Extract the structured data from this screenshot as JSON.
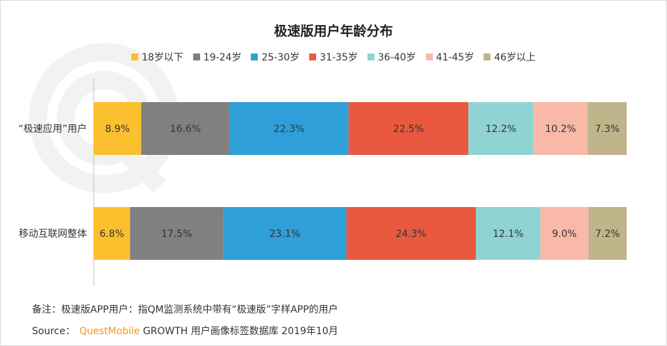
{
  "chart_data": {
    "type": "bar",
    "orientation": "horizontal",
    "stacked": true,
    "title": "极速版用户年龄分布",
    "categories": [
      "“极速应用”用户",
      "移动互联网整体"
    ],
    "series": [
      {
        "name": "18岁以下",
        "color": "#fbc02d",
        "values": [
          8.9,
          6.8
        ],
        "labels": [
          "8.9%",
          "6.8%"
        ]
      },
      {
        "name": "19-24岁",
        "color": "#808080",
        "values": [
          16.6,
          17.5
        ],
        "labels": [
          "16.6%",
          "17.5%"
        ]
      },
      {
        "name": "25-30岁",
        "color": "#2e9fd8",
        "values": [
          22.3,
          23.1
        ],
        "labels": [
          "22.3%",
          "23.1%"
        ]
      },
      {
        "name": "31-35岁",
        "color": "#e8593f",
        "values": [
          22.5,
          24.3
        ],
        "labels": [
          "22.5%",
          "24.3%"
        ]
      },
      {
        "name": "36-40岁",
        "color": "#8fd3d2",
        "values": [
          12.2,
          12.1
        ],
        "labels": [
          "12.2%",
          "12.1%"
        ]
      },
      {
        "name": "41-45岁",
        "color": "#f8b9a8",
        "values": [
          10.2,
          9.0
        ],
        "labels": [
          "10.2%",
          "9.0%"
        ]
      },
      {
        "name": "46岁以上",
        "color": "#bfb48a",
        "values": [
          7.3,
          7.2
        ],
        "labels": [
          "7.3%",
          "7.2%"
        ]
      }
    ],
    "xlim": [
      0,
      100
    ],
    "legend": "top-center",
    "grid": false
  },
  "footer": {
    "note": "备注：极速版APP用户：指QM监测系统中带有“极速版”字样APP的用户",
    "source_label": "Source：",
    "brand": "QuestMobile",
    "source_text": "GROWTH 用户画像标签数据库 2019年10月"
  }
}
